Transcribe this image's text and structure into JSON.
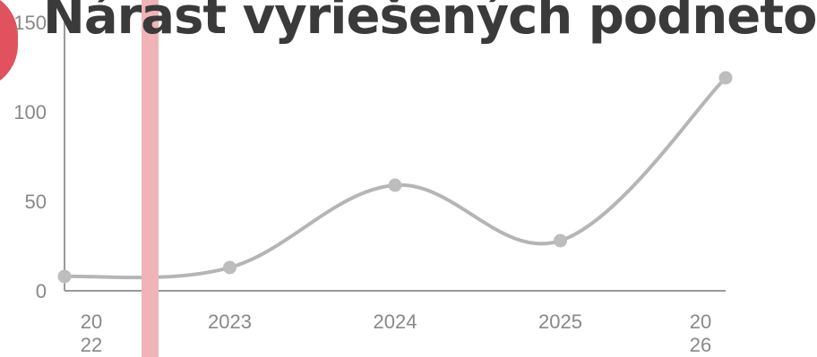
{
  "chart_data": {
    "type": "line",
    "title": "Nárast vyriešených podnetov",
    "xlabel": "",
    "ylabel": "",
    "x": [
      "2022",
      "2023",
      "2024",
      "2025",
      "2026"
    ],
    "x_tick_labels": [
      [
        "20",
        "22"
      ],
      [
        "2023"
      ],
      [
        "2024"
      ],
      [
        "2025"
      ],
      [
        "20",
        "26"
      ]
    ],
    "y_ticks": [
      0,
      50,
      100,
      150
    ],
    "ylim": [
      0,
      150
    ],
    "series": [
      {
        "values": [
          8,
          13,
          59,
          28,
          119
        ]
      }
    ],
    "grid": false,
    "colors": {
      "line": "#b5b5b5",
      "points": "#bdbdbd",
      "axis": "#9a9a9a",
      "highlight_bar": "#f0b3b7",
      "accent": "#e0525d"
    }
  }
}
